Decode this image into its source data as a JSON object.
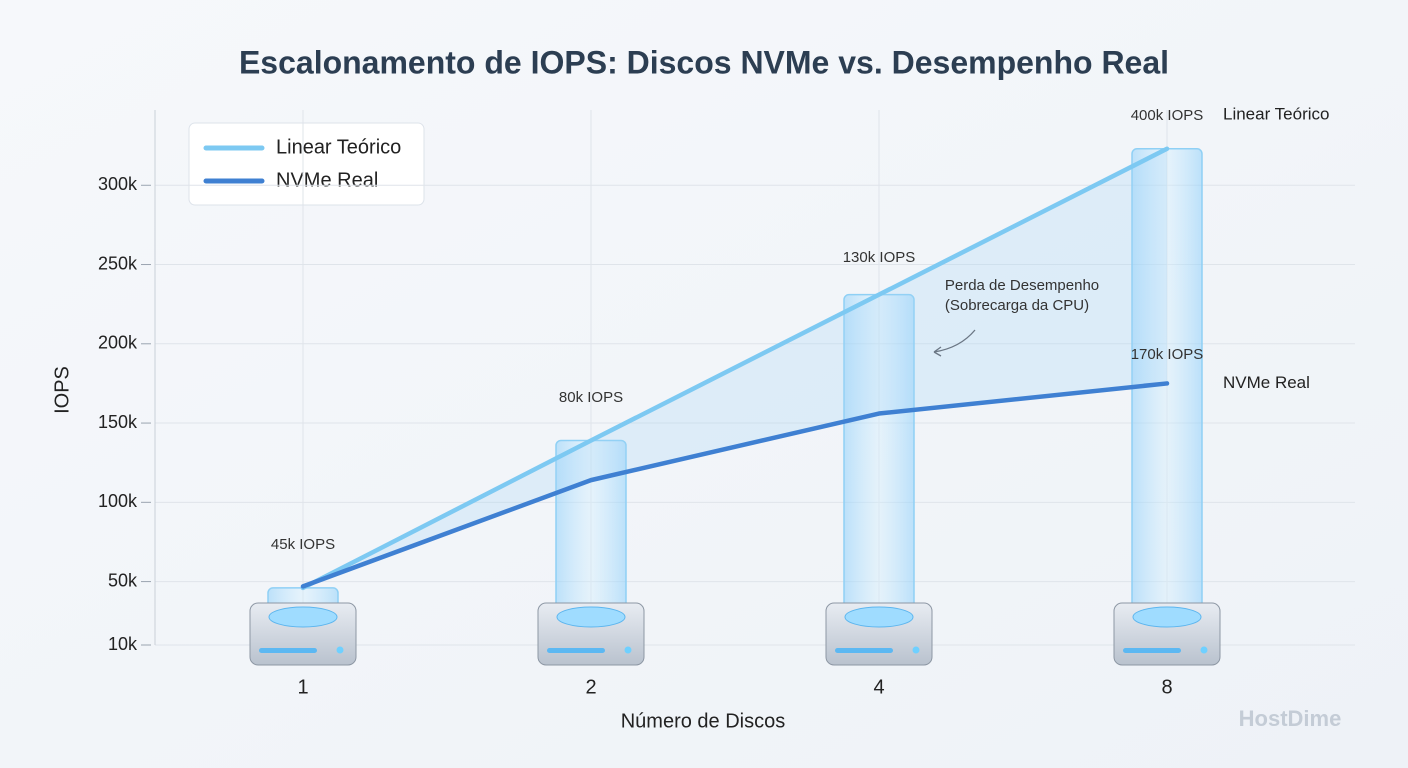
{
  "chart_data": {
    "type": "line",
    "title": "Escalonamento de IOPS: Discos NVMe vs. Desempenho Real",
    "x_label": "Número de Discos",
    "y_label": "IOPS",
    "categories": [
      "1",
      "2",
      "4",
      "8"
    ],
    "series": [
      {
        "name": "Linear Teórico",
        "color": "#7dc9f2",
        "values": [
          46000,
          139000,
          231000,
          323000
        ]
      },
      {
        "name": "NVMe Real",
        "color": "#3f80d2",
        "values": [
          47000,
          114000,
          156000,
          175000
        ]
      }
    ],
    "ylim": [
      10000,
      350000
    ],
    "yticks": [
      {
        "value": 10000,
        "label": "10k"
      },
      {
        "value": 50000,
        "label": "50k"
      },
      {
        "value": 100000,
        "label": "100k"
      },
      {
        "value": 150000,
        "label": "150k"
      },
      {
        "value": 200000,
        "label": "200k"
      },
      {
        "value": 250000,
        "label": "250k"
      },
      {
        "value": 300000,
        "label": "300k"
      }
    ],
    "grid": true,
    "legend": "upper left",
    "annotations": [
      "45k IOPS",
      "80k IOPS",
      "130k IOPS",
      "400k IOPS",
      "170k IOPS",
      "Perda de Desempenho",
      "(Sobrecarga da CPU)"
    ],
    "watermark": "HostDime"
  }
}
